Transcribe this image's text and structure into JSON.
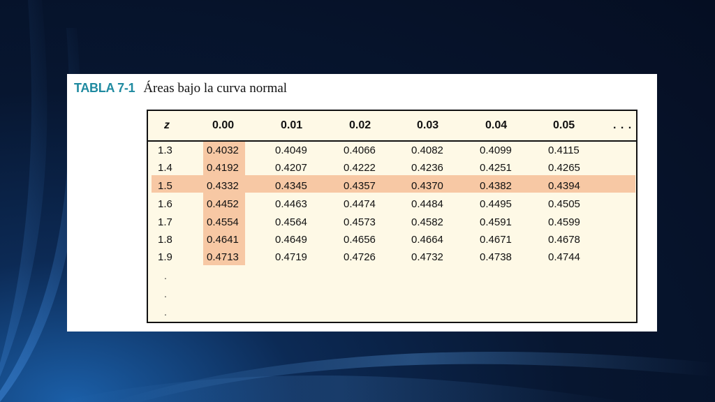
{
  "title": {
    "label": "TABLA 7-1",
    "text": "Áreas bajo la curva normal"
  },
  "table": {
    "headers": [
      "z",
      "0.00",
      "0.01",
      "0.02",
      "0.03",
      "0.04",
      "0.05",
      ". . ."
    ],
    "rows": [
      [
        "1.3",
        "0.4032",
        "0.4049",
        "0.4066",
        "0.4082",
        "0.4099",
        "0.4115"
      ],
      [
        "1.4",
        "0.4192",
        "0.4207",
        "0.4222",
        "0.4236",
        "0.4251",
        "0.4265"
      ],
      [
        "1.5",
        "0.4332",
        "0.4345",
        "0.4357",
        "0.4370",
        "0.4382",
        "0.4394"
      ],
      [
        "1.6",
        "0.4452",
        "0.4463",
        "0.4474",
        "0.4484",
        "0.4495",
        "0.4505"
      ],
      [
        "1.7",
        "0.4554",
        "0.4564",
        "0.4573",
        "0.4582",
        "0.4591",
        "0.4599"
      ],
      [
        "1.8",
        "0.4641",
        "0.4649",
        "0.4656",
        "0.4664",
        "0.4671",
        "0.4678"
      ],
      [
        "1.9",
        "0.4713",
        "0.4719",
        "0.4726",
        "0.4732",
        "0.4738",
        "0.4744"
      ]
    ],
    "continuation": [
      ".",
      ".",
      "."
    ],
    "highlight_row": "1.5",
    "highlight_column": "0.00"
  },
  "colors": {
    "background": "#071630",
    "title_label": "#1f8aa0",
    "table_background": "#fef9e6",
    "highlight": "#f7c8a4"
  }
}
